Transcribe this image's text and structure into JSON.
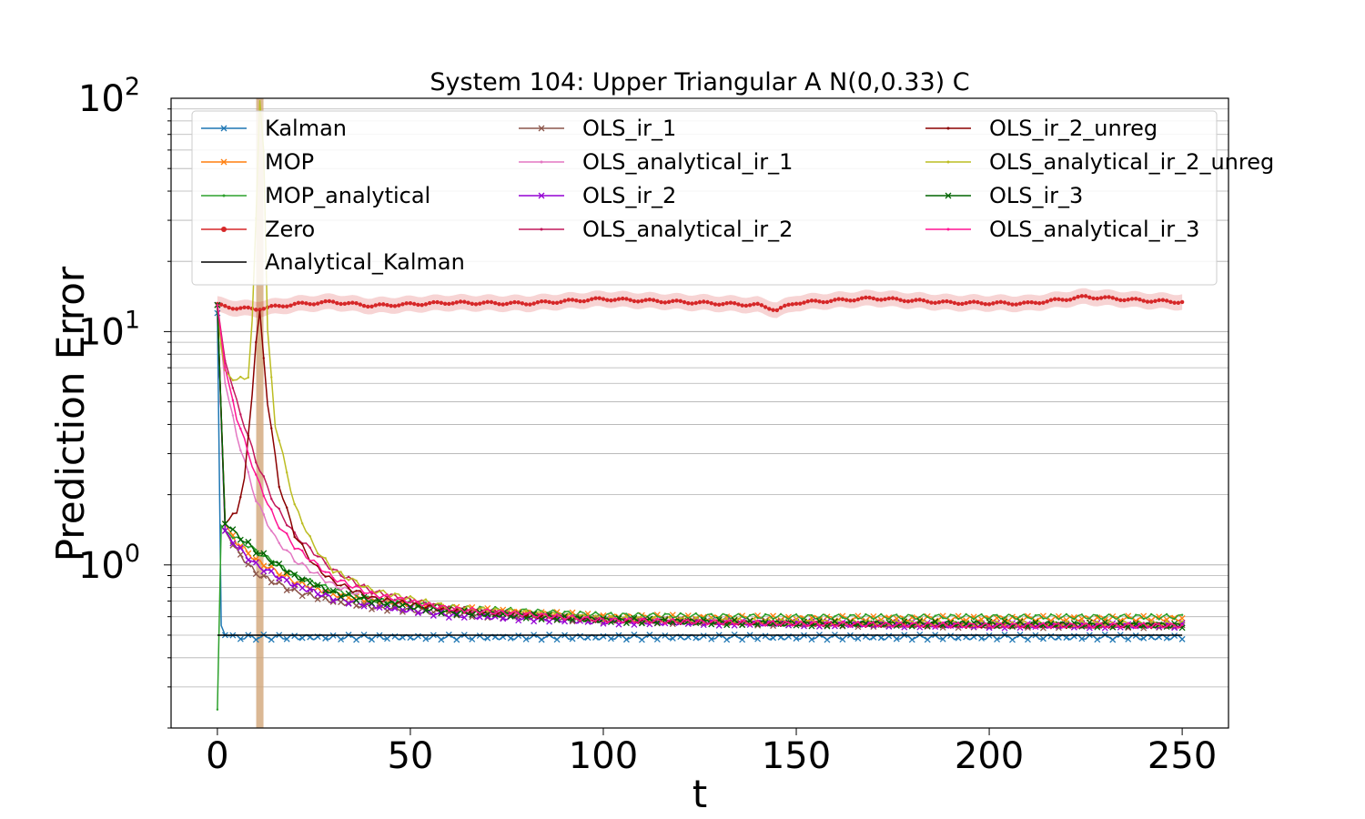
{
  "chart_data": {
    "type": "line",
    "title": "System 104: Upper Triangular A N(0,0.33) C",
    "xlabel": "t",
    "ylabel": "Prediction Error",
    "xlim": [
      -12,
      262
    ],
    "ylim": [
      0.2,
      100
    ],
    "yscale": "log",
    "x_ticks": [
      "0",
      "50",
      "100",
      "150",
      "200",
      "250"
    ],
    "y_ticks": [
      {
        "base": "10",
        "exp": "0",
        "value": 1
      },
      {
        "base": "10",
        "exp": "1",
        "value": 10
      },
      {
        "base": "10",
        "exp": "2",
        "value": 100
      }
    ],
    "grid": "horizontal minor log gridlines",
    "legend_position": "top",
    "vertical_band": {
      "x": 11,
      "color": "#d2a679"
    },
    "series": [
      {
        "name": "Kalman",
        "color": "#1f77b4",
        "marker": "x",
        "points": [
          [
            0,
            12
          ],
          [
            1,
            0.55
          ],
          [
            2,
            0.5
          ],
          [
            5,
            0.49
          ],
          [
            50,
            0.49
          ],
          [
            100,
            0.49
          ],
          [
            150,
            0.49
          ],
          [
            200,
            0.49
          ],
          [
            250,
            0.49
          ]
        ]
      },
      {
        "name": "MOP",
        "color": "#ff7f0e",
        "marker": "x",
        "points": [
          [
            0,
            13
          ],
          [
            2,
            1.5
          ],
          [
            5,
            1.25
          ],
          [
            10,
            1.05
          ],
          [
            20,
            0.85
          ],
          [
            30,
            0.75
          ],
          [
            40,
            0.7
          ],
          [
            60,
            0.65
          ],
          [
            100,
            0.6
          ],
          [
            150,
            0.59
          ],
          [
            200,
            0.59
          ],
          [
            250,
            0.59
          ]
        ]
      },
      {
        "name": "MOP_analytical",
        "color": "#2ca02c",
        "marker": ".",
        "points": [
          [
            0,
            0.24
          ],
          [
            0.6,
            1.5
          ],
          [
            2,
            1.4
          ],
          [
            5,
            1.3
          ],
          [
            10,
            1.15
          ],
          [
            20,
            0.9
          ],
          [
            30,
            0.78
          ],
          [
            40,
            0.71
          ],
          [
            60,
            0.66
          ],
          [
            100,
            0.61
          ],
          [
            150,
            0.6
          ],
          [
            200,
            0.6
          ],
          [
            250,
            0.6
          ]
        ]
      },
      {
        "name": "Zero",
        "color": "#d62728",
        "marker": "o",
        "points": [
          [
            0,
            13
          ],
          [
            5,
            12.6
          ],
          [
            10,
            12.5
          ],
          [
            20,
            13.1
          ],
          [
            30,
            13.4
          ],
          [
            40,
            12.9
          ],
          [
            60,
            13.3
          ],
          [
            80,
            13.2
          ],
          [
            100,
            13.8
          ],
          [
            120,
            13.4
          ],
          [
            140,
            13.0
          ],
          [
            145,
            12.4
          ],
          [
            150,
            13.3
          ],
          [
            170,
            13.9
          ],
          [
            190,
            13.3
          ],
          [
            210,
            13.2
          ],
          [
            225,
            14.1
          ],
          [
            240,
            13.6
          ],
          [
            250,
            13.4
          ]
        ]
      },
      {
        "name": "Analytical_Kalman",
        "color": "#000000",
        "marker": "",
        "points": [
          [
            0,
            0.5
          ],
          [
            250,
            0.5
          ]
        ]
      },
      {
        "name": "OLS_ir_1",
        "color": "#8c564b",
        "marker": "x",
        "points": [
          [
            0,
            13
          ],
          [
            2,
            1.4
          ],
          [
            5,
            1.15
          ],
          [
            10,
            0.92
          ],
          [
            20,
            0.77
          ],
          [
            30,
            0.7
          ],
          [
            40,
            0.66
          ],
          [
            60,
            0.62
          ],
          [
            100,
            0.58
          ],
          [
            150,
            0.56
          ],
          [
            200,
            0.55
          ],
          [
            250,
            0.55
          ]
        ]
      },
      {
        "name": "OLS_analytical_ir_1",
        "color": "#e377c2",
        "marker": ".",
        "points": [
          [
            0,
            13
          ],
          [
            2,
            6
          ],
          [
            5,
            3.6
          ],
          [
            10,
            1.9
          ],
          [
            15,
            1.3
          ],
          [
            20,
            1.05
          ],
          [
            30,
            0.82
          ],
          [
            40,
            0.72
          ],
          [
            60,
            0.64
          ],
          [
            100,
            0.58
          ],
          [
            150,
            0.56
          ],
          [
            200,
            0.55
          ],
          [
            250,
            0.55
          ]
        ]
      },
      {
        "name": "OLS_ir_2",
        "color": "#9400d3",
        "marker": "x",
        "points": [
          [
            0,
            13
          ],
          [
            2,
            1.4
          ],
          [
            5,
            1.2
          ],
          [
            10,
            1.0
          ],
          [
            20,
            0.82
          ],
          [
            30,
            0.72
          ],
          [
            40,
            0.67
          ],
          [
            60,
            0.61
          ],
          [
            100,
            0.57
          ],
          [
            150,
            0.56
          ],
          [
            200,
            0.55
          ],
          [
            250,
            0.55
          ]
        ]
      },
      {
        "name": "OLS_analytical_ir_2",
        "color": "#c2185b",
        "marker": ".",
        "points": [
          [
            0,
            13
          ],
          [
            2,
            7.5
          ],
          [
            5,
            5.0
          ],
          [
            10,
            2.8
          ],
          [
            15,
            1.8
          ],
          [
            20,
            1.35
          ],
          [
            30,
            0.95
          ],
          [
            40,
            0.77
          ],
          [
            60,
            0.65
          ],
          [
            100,
            0.58
          ],
          [
            150,
            0.56
          ],
          [
            200,
            0.55
          ],
          [
            250,
            0.55
          ]
        ]
      },
      {
        "name": "OLS_ir_2_unreg",
        "color": "#8b0000",
        "marker": ".",
        "points": [
          [
            0,
            13
          ],
          [
            2,
            1.5
          ],
          [
            5,
            1.7
          ],
          [
            7,
            2.3
          ],
          [
            9,
            5.5
          ],
          [
            10,
            9
          ],
          [
            11,
            12
          ],
          [
            13,
            5
          ],
          [
            16,
            2.2
          ],
          [
            20,
            1.35
          ],
          [
            25,
            1.0
          ],
          [
            30,
            0.85
          ],
          [
            40,
            0.72
          ],
          [
            60,
            0.64
          ],
          [
            100,
            0.58
          ],
          [
            150,
            0.56
          ],
          [
            200,
            0.55
          ],
          [
            250,
            0.55
          ]
        ]
      },
      {
        "name": "OLS_analytical_ir_2_unreg",
        "color": "#bcbd22",
        "marker": ".",
        "points": [
          [
            0,
            13
          ],
          [
            1.5,
            7
          ],
          [
            3,
            6.5
          ],
          [
            5,
            6.2
          ],
          [
            7,
            6.3
          ],
          [
            8,
            6.5
          ],
          [
            9,
            11
          ],
          [
            10,
            30
          ],
          [
            11,
            100
          ],
          [
            12,
            60
          ],
          [
            13,
            10
          ],
          [
            15,
            4
          ],
          [
            18,
            2.5
          ],
          [
            20,
            1.8
          ],
          [
            25,
            1.2
          ],
          [
            30,
            0.95
          ],
          [
            40,
            0.78
          ],
          [
            60,
            0.66
          ],
          [
            100,
            0.59
          ],
          [
            150,
            0.57
          ],
          [
            200,
            0.56
          ],
          [
            250,
            0.56
          ]
        ]
      },
      {
        "name": "OLS_ir_3",
        "color": "#006400",
        "marker": "x",
        "points": [
          [
            0,
            13
          ],
          [
            2,
            1.5
          ],
          [
            5,
            1.35
          ],
          [
            10,
            1.15
          ],
          [
            20,
            0.9
          ],
          [
            30,
            0.76
          ],
          [
            40,
            0.7
          ],
          [
            60,
            0.63
          ],
          [
            100,
            0.58
          ],
          [
            150,
            0.56
          ],
          [
            200,
            0.56
          ],
          [
            250,
            0.55
          ]
        ]
      },
      {
        "name": "OLS_analytical_ir_3",
        "color": "#ff1493",
        "marker": ".",
        "points": [
          [
            0,
            13
          ],
          [
            2,
            7
          ],
          [
            5,
            4.3
          ],
          [
            10,
            2.4
          ],
          [
            15,
            1.55
          ],
          [
            20,
            1.2
          ],
          [
            30,
            0.88
          ],
          [
            40,
            0.75
          ],
          [
            60,
            0.65
          ],
          [
            100,
            0.58
          ],
          [
            150,
            0.56
          ],
          [
            200,
            0.55
          ],
          [
            250,
            0.55
          ]
        ]
      }
    ]
  }
}
